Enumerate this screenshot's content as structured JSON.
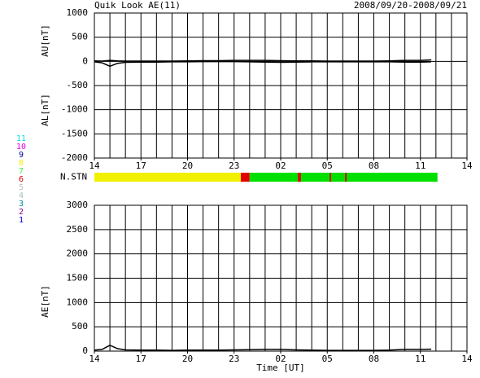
{
  "title": "Quik Look AE(11)",
  "date_range": "2008/09/20-2008/09/21",
  "station_legend": {
    "labels": [
      "11",
      "10",
      "9",
      "8",
      "7",
      "6",
      "5",
      "4",
      "3",
      "2",
      "1"
    ],
    "colors": [
      "#00e0e0",
      "#e000e0",
      "#0000a0",
      "#f0f000",
      "#40f040",
      "#e00000",
      "#c0c0c0",
      "#a0c0c0",
      "#009090",
      "#900090",
      "#0000e0"
    ]
  },
  "chart_data": [
    {
      "type": "line",
      "ylabels": [
        "AU[nT]",
        "AL[nT]"
      ],
      "x": [
        14,
        14.5,
        15,
        15.5,
        16,
        17,
        18,
        19,
        20,
        21,
        22,
        23,
        24,
        25,
        26,
        27,
        28,
        29,
        30,
        31,
        32,
        33,
        34,
        35,
        35.7
      ],
      "series": [
        {
          "color": "#000000",
          "values": [
            10,
            5,
            20,
            10,
            5,
            5,
            5,
            5,
            10,
            15,
            15,
            20,
            20,
            20,
            15,
            10,
            10,
            5,
            5,
            5,
            5,
            10,
            20,
            20,
            30
          ]
        },
        {
          "color": "#000000",
          "values": [
            -10,
            -30,
            -100,
            -40,
            -20,
            -15,
            -15,
            -10,
            -10,
            -5,
            -5,
            -5,
            -10,
            -15,
            -20,
            -15,
            -10,
            -10,
            -10,
            -10,
            -10,
            -10,
            -15,
            -15,
            -10
          ]
        }
      ],
      "xlim": [
        14,
        38
      ],
      "xticks": [
        14,
        17,
        20,
        23,
        {
          "value": 26,
          "label": "02"
        },
        {
          "value": 29,
          "label": "05"
        },
        {
          "value": 32,
          "label": "08"
        },
        {
          "value": 35,
          "label": "11"
        },
        {
          "value": 38,
          "label": "14"
        }
      ],
      "xminor": [
        14,
        15,
        16,
        17,
        18,
        19,
        20,
        21,
        22,
        23,
        24,
        25,
        26,
        27,
        28,
        29,
        30,
        31,
        32,
        33,
        34,
        35,
        36,
        37,
        38
      ],
      "ylim": [
        -2000,
        1000
      ],
      "yticks": [
        -2000,
        -1500,
        -1000,
        -500,
        0,
        500,
        1000
      ],
      "grid": true
    },
    {
      "type": "timeline",
      "label": "N.STN",
      "xlim": [
        14,
        38
      ],
      "segments": [
        {
          "start": 14,
          "end": 23.43,
          "color": "#f0f000"
        },
        {
          "start": 23.43,
          "end": 24.0,
          "color": "#e00000"
        },
        {
          "start": 24.0,
          "end": 36.1,
          "color": "#00e000"
        },
        {
          "start": 27.1,
          "end": 27.3,
          "color": "#e00000"
        },
        {
          "start": 29.15,
          "end": 29.25,
          "color": "#e00000"
        },
        {
          "start": 30.15,
          "end": 30.25,
          "color": "#e00000"
        }
      ]
    },
    {
      "type": "line",
      "ylabels": [
        "AE[nT]"
      ],
      "xlabel": "Time [UT]",
      "x": [
        14,
        14.5,
        15,
        15.5,
        16,
        17,
        18,
        19,
        20,
        21,
        22,
        23,
        24,
        25,
        26,
        27,
        28,
        29,
        30,
        31,
        32,
        33,
        34,
        35,
        35.7
      ],
      "series": [
        {
          "color": "#000000",
          "values": [
            20,
            35,
            120,
            50,
            25,
            20,
            20,
            15,
            20,
            20,
            20,
            25,
            30,
            35,
            35,
            25,
            20,
            15,
            15,
            15,
            15,
            20,
            35,
            35,
            40
          ]
        }
      ],
      "xlim": [
        14,
        38
      ],
      "xticks": [
        14,
        17,
        20,
        23,
        {
          "value": 26,
          "label": "02"
        },
        {
          "value": 29,
          "label": "05"
        },
        {
          "value": 32,
          "label": "08"
        },
        {
          "value": 35,
          "label": "11"
        },
        {
          "value": 38,
          "label": "14"
        }
      ],
      "xminor": [
        14,
        15,
        16,
        17,
        18,
        19,
        20,
        21,
        22,
        23,
        24,
        25,
        26,
        27,
        28,
        29,
        30,
        31,
        32,
        33,
        34,
        35,
        36,
        37,
        38
      ],
      "ylim": [
        0,
        3000
      ],
      "yticks": [
        0,
        500,
        1000,
        1500,
        2000,
        2500,
        3000
      ],
      "grid": true
    }
  ]
}
